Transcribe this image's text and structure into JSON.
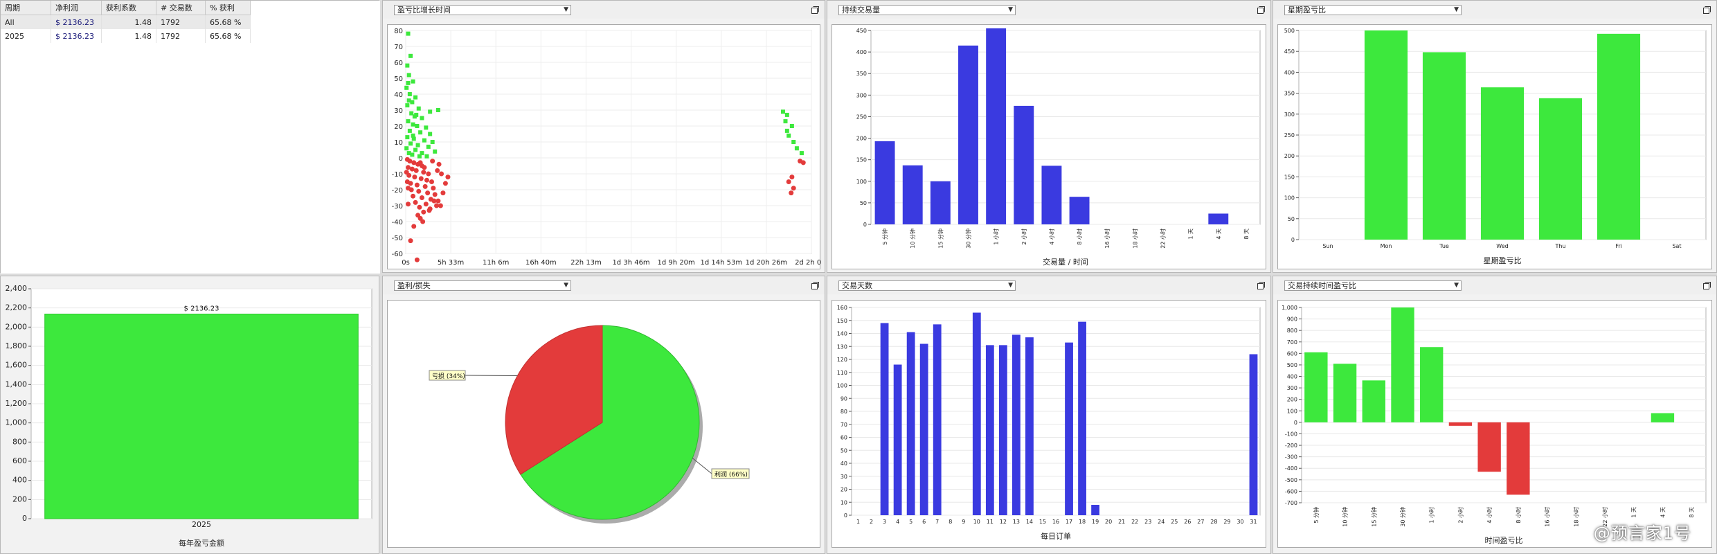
{
  "stats_table": {
    "headers": [
      "周期",
      "净利润",
      "获利系数",
      "# 交易数",
      "% 获利"
    ],
    "rows": [
      [
        "All",
        "$ 2136.23",
        "1.48",
        "1792",
        "65.68 %"
      ],
      [
        "2025",
        "$ 2136.23",
        "1.48",
        "1792",
        "65.68 %"
      ]
    ]
  },
  "panels": {
    "scatter_dropdown": "盈亏比增长时间",
    "hold_dropdown": "持续交易量",
    "weekday_dropdown": "星期盈亏比",
    "pie_dropdown": "盈利/损失",
    "daycount_dropdown": "交易天数",
    "holdpnl_dropdown": "交易持续时间盈亏比"
  },
  "colors": {
    "profit": "#3de83d",
    "loss": "#e33b3b",
    "volume": "#3a3ae0",
    "pie_shadow": "#666666"
  },
  "watermark": "@预言家1号",
  "chart_data": [
    {
      "id": "yearly",
      "type": "bar",
      "categories": [
        "2025"
      ],
      "values": [
        2136.23
      ],
      "data_label": "$ 2136.23",
      "xlabel": "每年盈亏金额",
      "ylim": [
        0,
        2400
      ],
      "yticks": [
        "0",
        "200",
        "400",
        "600",
        "800",
        "1,000",
        "1,200",
        "1,400",
        "1,600",
        "1,800",
        "2,000",
        "2,200",
        "2,400"
      ],
      "grid": true
    },
    {
      "id": "scatter",
      "type": "scatter",
      "xticks": [
        "0s",
        "5h 33m",
        "11h 6m",
        "16h 40m",
        "22h 13m",
        "1d 3h 46m",
        "1d 9h 20m",
        "1d 14h 53m",
        "1d 20h 26m",
        "2d 2h 0m"
      ],
      "ylim": [
        -60,
        80
      ],
      "yticks": [
        "80",
        "70",
        "60",
        "50",
        "40",
        "30",
        "20",
        "10",
        "0",
        "-10",
        "-20",
        "-30",
        "-40",
        "-50",
        "-60"
      ],
      "x_unit": "hours",
      "series": [
        {
          "points": [
            [
              0.3,
              78
            ],
            [
              0.6,
              64
            ],
            [
              0.2,
              58
            ],
            [
              0.4,
              52
            ],
            [
              0.9,
              48
            ],
            [
              0.1,
              44
            ],
            [
              0.5,
              40
            ],
            [
              1.2,
              38
            ],
            [
              0.8,
              35
            ],
            [
              0.2,
              33
            ],
            [
              1.6,
              31
            ],
            [
              0.7,
              28
            ],
            [
              1.1,
              26
            ],
            [
              2.0,
              25
            ],
            [
              0.3,
              23
            ],
            [
              0.9,
              21
            ],
            [
              1.4,
              20
            ],
            [
              2.5,
              19
            ],
            [
              0.5,
              17
            ],
            [
              1.8,
              16
            ],
            [
              3.0,
              15
            ],
            [
              0.2,
              13
            ],
            [
              1.0,
              12
            ],
            [
              2.3,
              11
            ],
            [
              3.3,
              10
            ],
            [
              0.6,
              9
            ],
            [
              1.5,
              8
            ],
            [
              2.8,
              7
            ],
            [
              0.1,
              6
            ],
            [
              1.2,
              5
            ],
            [
              3.6,
              4
            ],
            [
              0.4,
              3
            ],
            [
              2.0,
              3
            ],
            [
              0.8,
              2
            ],
            [
              1.7,
              1
            ],
            [
              2.6,
              1
            ],
            [
              4.0,
              30
            ],
            [
              3.0,
              29
            ],
            [
              0.3,
              47
            ],
            [
              0.4,
              36
            ],
            [
              1.3,
              27
            ],
            [
              0.9,
              14
            ],
            [
              46.5,
              29
            ],
            [
              47.0,
              27
            ],
            [
              46.8,
              23
            ],
            [
              47.6,
              20
            ],
            [
              47.2,
              14
            ],
            [
              47.8,
              10
            ],
            [
              48.2,
              6
            ],
            [
              48.8,
              3
            ],
            [
              47.0,
              17
            ]
          ]
        },
        {
          "points": [
            [
              0.2,
              -1
            ],
            [
              0.5,
              -2
            ],
            [
              1.0,
              -3
            ],
            [
              1.5,
              -4
            ],
            [
              2.0,
              -5
            ],
            [
              0.3,
              -6
            ],
            [
              0.8,
              -7
            ],
            [
              1.3,
              -8
            ],
            [
              2.2,
              -9
            ],
            [
              2.8,
              -10
            ],
            [
              0.4,
              -11
            ],
            [
              1.1,
              -12
            ],
            [
              1.9,
              -13
            ],
            [
              2.6,
              -14
            ],
            [
              3.2,
              -15
            ],
            [
              0.6,
              -16
            ],
            [
              1.4,
              -17
            ],
            [
              2.4,
              -18
            ],
            [
              3.4,
              -19
            ],
            [
              0.7,
              -20
            ],
            [
              1.6,
              -21
            ],
            [
              2.7,
              -22
            ],
            [
              3.6,
              -23
            ],
            [
              0.9,
              -24
            ],
            [
              2.0,
              -25
            ],
            [
              3.1,
              -26
            ],
            [
              4.0,
              -27
            ],
            [
              1.2,
              -28
            ],
            [
              2.5,
              -29
            ],
            [
              3.8,
              -30
            ],
            [
              1.7,
              -31
            ],
            [
              3.0,
              -32
            ],
            [
              4.3,
              -30
            ],
            [
              2.2,
              -34
            ],
            [
              1.5,
              -36
            ],
            [
              2.9,
              -33
            ],
            [
              1.8,
              -38
            ],
            [
              2.1,
              -40
            ],
            [
              1.0,
              -43
            ],
            [
              3.5,
              -27
            ],
            [
              4.6,
              -22
            ],
            [
              4.9,
              -16
            ],
            [
              5.2,
              -12
            ],
            [
              4.4,
              -10
            ],
            [
              3.9,
              -8
            ],
            [
              2.3,
              -6
            ],
            [
              1.8,
              -3
            ],
            [
              3.3,
              -2
            ],
            [
              4.1,
              -4
            ],
            [
              0.1,
              -9
            ],
            [
              0.2,
              -15
            ],
            [
              0.3,
              -19
            ],
            [
              0.3,
              -29
            ],
            [
              1.4,
              -64
            ],
            [
              0.6,
              -52
            ],
            [
              48.6,
              -2
            ],
            [
              49.0,
              -3
            ],
            [
              47.6,
              -12
            ],
            [
              47.2,
              -15
            ],
            [
              47.8,
              -19
            ],
            [
              47.5,
              -22
            ]
          ]
        }
      ]
    },
    {
      "id": "hold_volume",
      "type": "bar",
      "categories": [
        "5 分钟",
        "10 分钟",
        "15 分钟",
        "30 分钟",
        "1 小时",
        "2 小时",
        "4 小时",
        "8 小时",
        "16 小时",
        "18 小时",
        "22 小时",
        "1 天",
        "4 天",
        "8 天"
      ],
      "values": [
        193,
        137,
        100,
        415,
        455,
        275,
        136,
        64,
        0,
        0,
        0,
        0,
        25,
        0
      ],
      "xlabel": "交易量 / 时间",
      "ylim": [
        0,
        450
      ],
      "yticks": [
        "0",
        "50",
        "100",
        "150",
        "200",
        "250",
        "300",
        "350",
        "400",
        "450"
      ],
      "grid": true
    },
    {
      "id": "weekday",
      "type": "bar",
      "categories": [
        "Sun",
        "Mon",
        "Tue",
        "Wed",
        "Thu",
        "Fri",
        "Sat"
      ],
      "values": [
        0,
        500,
        448,
        364,
        338,
        492,
        0
      ],
      "xlabel": "星期盈亏比",
      "ylim": [
        0,
        500
      ],
      "yticks": [
        "0",
        "50",
        "100",
        "150",
        "200",
        "250",
        "300",
        "350",
        "400",
        "450",
        "500"
      ],
      "grid": true
    },
    {
      "id": "pie",
      "type": "pie",
      "slices": [
        {
          "label": "亏损 (34%)",
          "value": 34
        },
        {
          "label": "利润 (66%)",
          "value": 66
        }
      ]
    },
    {
      "id": "daily",
      "type": "bar",
      "categories": [
        "1",
        "2",
        "3",
        "4",
        "5",
        "6",
        "7",
        "8",
        "9",
        "10",
        "11",
        "12",
        "13",
        "14",
        "15",
        "16",
        "17",
        "18",
        "19",
        "20",
        "21",
        "22",
        "23",
        "24",
        "25",
        "26",
        "27",
        "28",
        "29",
        "30",
        "31"
      ],
      "values": [
        0,
        0,
        148,
        116,
        141,
        132,
        147,
        0,
        0,
        156,
        131,
        131,
        139,
        137,
        0,
        0,
        133,
        149,
        8,
        0,
        0,
        0,
        0,
        0,
        0,
        0,
        0,
        0,
        0,
        0,
        124
      ],
      "xlabel": "每日订单",
      "ylim": [
        0,
        160
      ],
      "yticks": [
        "0",
        "10",
        "20",
        "30",
        "40",
        "50",
        "60",
        "70",
        "80",
        "90",
        "100",
        "110",
        "120",
        "130",
        "140",
        "150",
        "160"
      ],
      "grid": true
    },
    {
      "id": "hold_pnl",
      "type": "bar",
      "categories": [
        "5 分钟",
        "10 分钟",
        "15 分钟",
        "30 分钟",
        "1 小时",
        "2 小时",
        "4 小时",
        "8 小时",
        "16 小时",
        "18 小时",
        "22 小时",
        "1 天",
        "4 天",
        "8 天"
      ],
      "values": [
        610,
        510,
        365,
        1000,
        655,
        -30,
        -430,
        -630,
        0,
        0,
        0,
        0,
        80,
        0
      ],
      "xlabel": "时间盈亏比",
      "ylim": [
        -700,
        1000
      ],
      "yticks": [
        "1,000",
        "900",
        "800",
        "700",
        "600",
        "500",
        "400",
        "300",
        "200",
        "100",
        "0",
        "-100",
        "-200",
        "-300",
        "-400",
        "-500",
        "-600",
        "-700"
      ],
      "grid": true
    }
  ]
}
